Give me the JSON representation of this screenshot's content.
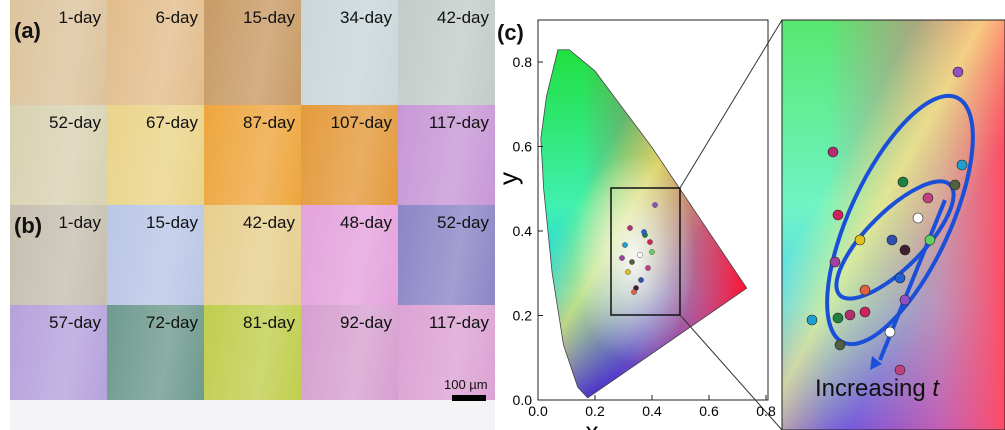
{
  "panel_labels": {
    "a": "(a)",
    "b": "(b)",
    "c": "(c)"
  },
  "rows": [
    [
      "1-day",
      "6-day",
      "15-day",
      "34-day",
      "42-day"
    ],
    [
      "52-day",
      "67-day",
      "87-day",
      "107-day",
      "117-day"
    ],
    [
      "1-day",
      "15-day",
      "42-day",
      "48-day",
      "52-day"
    ],
    [
      "57-day",
      "72-day",
      "81-day",
      "92-day",
      "117-day"
    ]
  ],
  "scale_bar": "100 µm",
  "plot": {
    "y_label": "y",
    "x_label": "x",
    "yticks": [
      "0.8",
      "0.6",
      "0.4",
      "0.2",
      "0.0"
    ],
    "xticks": [
      "0.0",
      "0.2",
      "0.4",
      "0.6",
      "0.8"
    ]
  },
  "annotation": {
    "text": "Increasing",
    "variable": "t"
  }
}
